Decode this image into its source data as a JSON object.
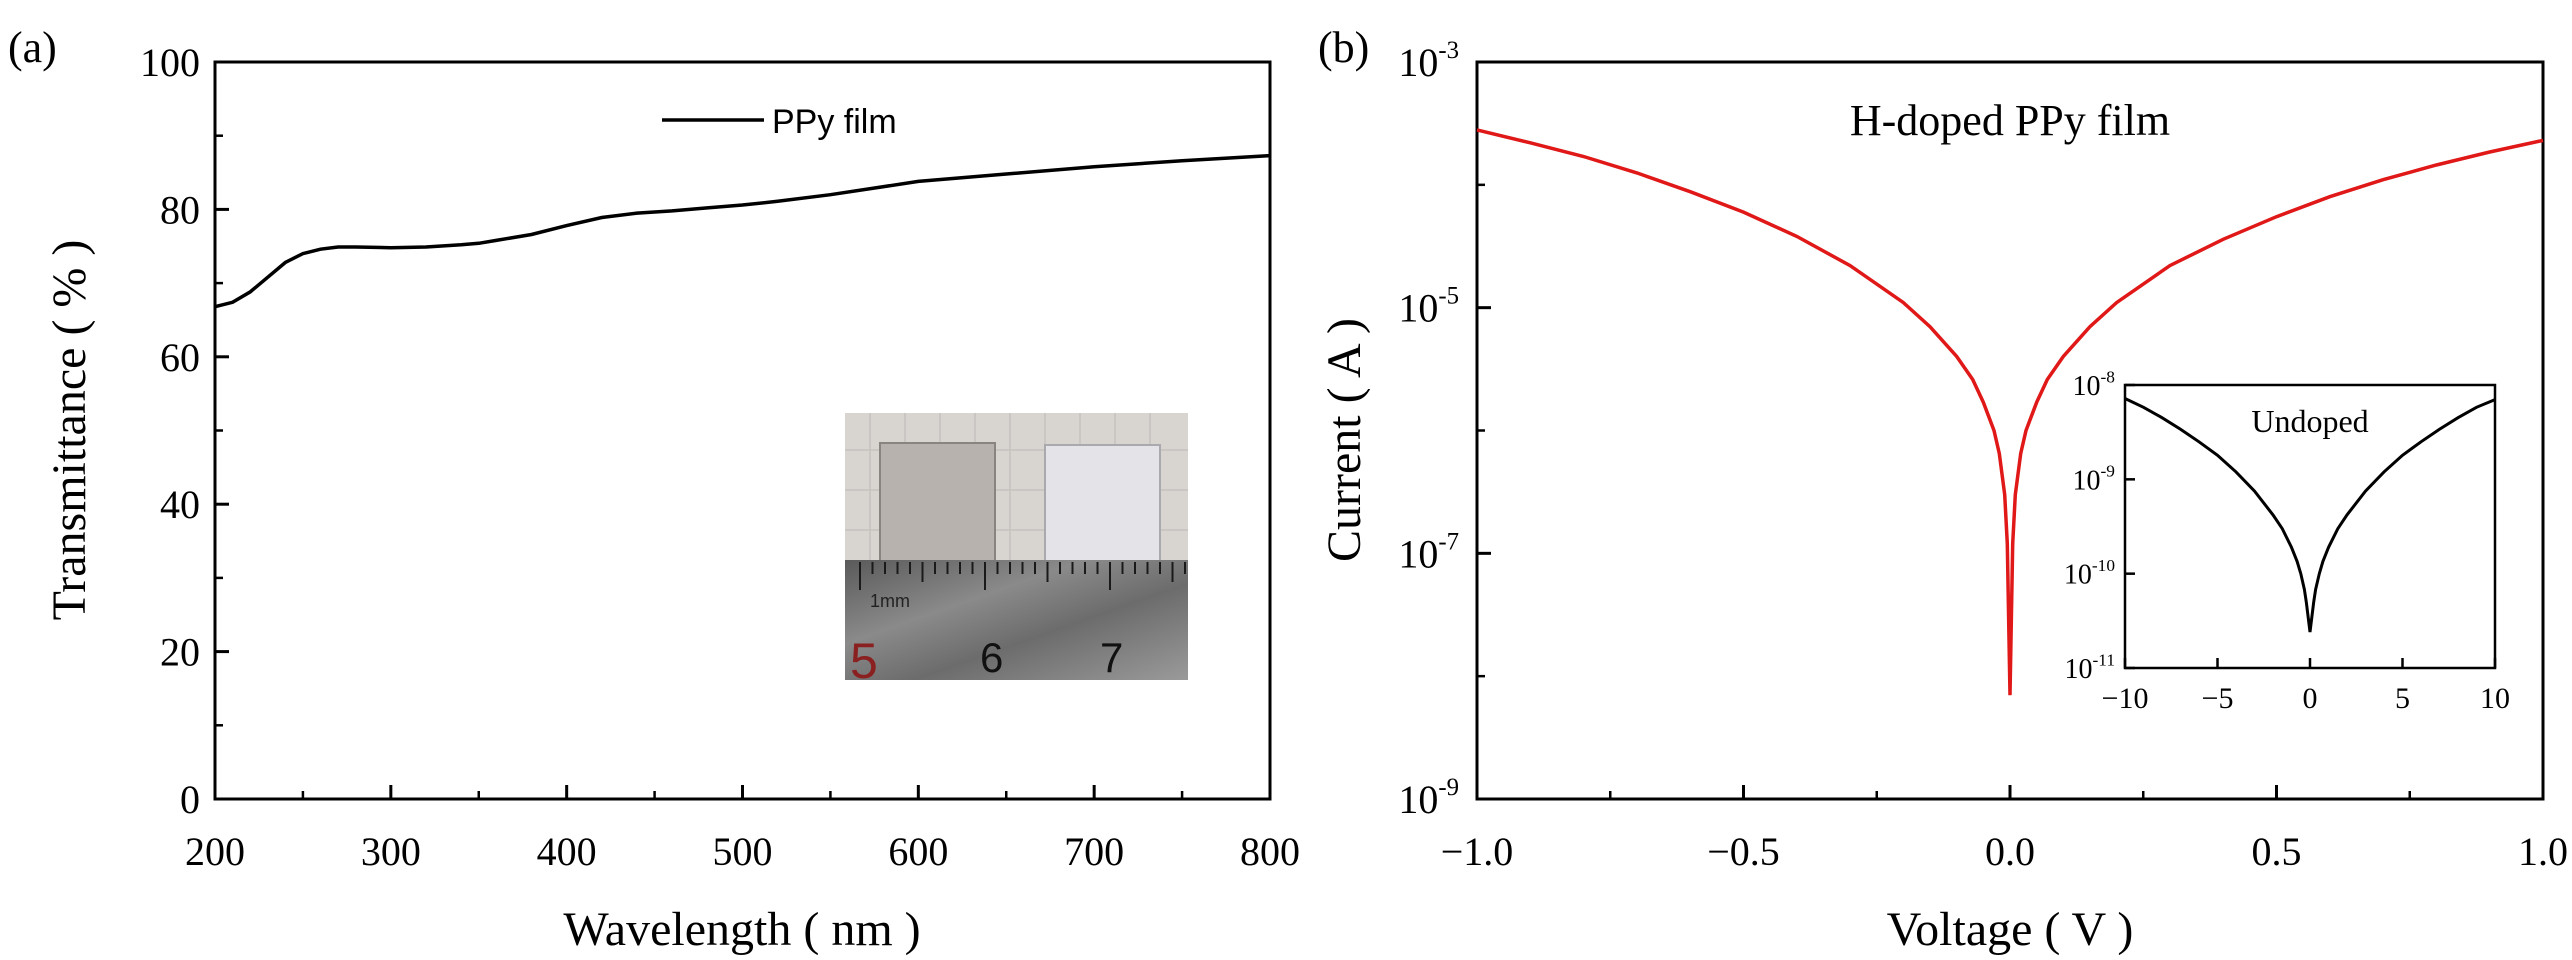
{
  "colors": {
    "axis": "#000000",
    "series_a": "#000000",
    "series_b": "#e01818",
    "inset": "#000000"
  },
  "chart_data": [
    {
      "id": "a",
      "panel_label": "(a)",
      "type": "line",
      "xlabel": "Wavelength ( nm )",
      "ylabel": "Transmittance ( % )",
      "xlim": [
        200,
        800
      ],
      "ylim": [
        0,
        100
      ],
      "xticks": [
        "200",
        "300",
        "400",
        "500",
        "600",
        "700",
        "800"
      ],
      "yticks": [
        "0",
        "20",
        "40",
        "60",
        "80",
        "100"
      ],
      "legend": "top-center",
      "series": [
        {
          "name": "PPy film",
          "x": [
            200,
            210,
            220,
            230,
            240,
            250,
            260,
            270,
            280,
            300,
            320,
            340,
            350,
            360,
            380,
            400,
            420,
            440,
            460,
            480,
            500,
            520,
            550,
            600,
            650,
            700,
            750,
            800
          ],
          "y": [
            66.8,
            67.4,
            68.8,
            70.8,
            72.8,
            74.0,
            74.6,
            74.9,
            74.9,
            74.8,
            74.9,
            75.2,
            75.4,
            75.8,
            76.6,
            77.8,
            78.9,
            79.5,
            79.8,
            80.2,
            80.6,
            81.1,
            82.0,
            83.8,
            84.8,
            85.8,
            86.6,
            87.3
          ]
        }
      ],
      "inset": {
        "kind": "photo",
        "description_labels": [
          "1mm",
          "5",
          "6",
          "7"
        ]
      }
    },
    {
      "id": "b",
      "panel_label": "(b)",
      "type": "line",
      "xlabel": "Voltage ( V )",
      "ylabel": "Current ( A )",
      "xlim": [
        -1.0,
        1.0
      ],
      "ylim": [
        1e-09,
        0.001
      ],
      "yscale": "log",
      "xticks": [
        "−1.0",
        "−0.5",
        "0.0",
        "0.5",
        "1.0"
      ],
      "yticks": [
        {
          "base": "10",
          "exp": "-3"
        },
        {
          "base": "10",
          "exp": "-5"
        },
        {
          "base": "10",
          "exp": "-7"
        },
        {
          "base": "10",
          "exp": "-9"
        }
      ],
      "annotation": "H-doped PPy film",
      "series": [
        {
          "name": "H-doped PPy film",
          "x": [
            -1.0,
            -0.9,
            -0.8,
            -0.7,
            -0.6,
            -0.5,
            -0.4,
            -0.3,
            -0.2,
            -0.15,
            -0.1,
            -0.07,
            -0.05,
            -0.03,
            -0.02,
            -0.01,
            -0.005,
            0.0,
            0.005,
            0.01,
            0.02,
            0.03,
            0.05,
            0.07,
            0.1,
            0.15,
            0.2,
            0.3,
            0.4,
            0.5,
            0.6,
            0.7,
            0.8,
            0.9,
            1.0
          ],
          "y": [
            0.00028,
            0.00022,
            0.00017,
            0.000125,
            8.8e-05,
            6e-05,
            3.8e-05,
            2.2e-05,
            1.1e-05,
            7e-06,
            4e-06,
            2.6e-06,
            1.7e-06,
            1e-06,
            6.5e-07,
            3e-07,
            1.2e-07,
            7e-09,
            1.2e-07,
            3e-07,
            6.5e-07,
            1e-06,
            1.7e-06,
            2.6e-06,
            4e-06,
            7e-06,
            1.1e-05,
            2.2e-05,
            3.6e-05,
            5.5e-05,
            8e-05,
            0.00011,
            0.000145,
            0.000185,
            0.00023
          ]
        }
      ],
      "inset": {
        "type": "line",
        "annotation": "Undoped",
        "xlim": [
          -10,
          10
        ],
        "ylim": [
          1e-11,
          1e-08
        ],
        "yscale": "log",
        "xticks": [
          "−10",
          "−5",
          "0",
          "5",
          "10"
        ],
        "yticks": [
          {
            "base": "10",
            "exp": "-8"
          },
          {
            "base": "10",
            "exp": "-9"
          },
          {
            "base": "10",
            "exp": "-10"
          },
          {
            "base": "10",
            "exp": "-11"
          }
        ],
        "series": [
          {
            "name": "Undoped",
            "x": [
              -10,
              -9,
              -8,
              -7,
              -6,
              -5,
              -4,
              -3,
              -2,
              -1.5,
              -1,
              -0.7,
              -0.5,
              -0.3,
              -0.2,
              0.0,
              0.2,
              0.3,
              0.5,
              0.7,
              1,
              1.5,
              2,
              3,
              4,
              5,
              6,
              7,
              8,
              9,
              10
            ],
            "y": [
              7.2e-09,
              5.8e-09,
              4.5e-09,
              3.4e-09,
              2.5e-09,
              1.8e-09,
              1.2e-09,
              7.5e-10,
              4.2e-10,
              3e-10,
              1.9e-10,
              1.35e-10,
              1e-10,
              6.8e-11,
              5e-11,
              2.4e-11,
              5e-11,
              6.8e-11,
              1e-10,
              1.35e-10,
              1.9e-10,
              3e-10,
              4.2e-10,
              7.5e-10,
              1.2e-09,
              1.8e-09,
              2.5e-09,
              3.4e-09,
              4.5e-09,
              5.8e-09,
              7e-09
            ]
          }
        ]
      }
    }
  ]
}
